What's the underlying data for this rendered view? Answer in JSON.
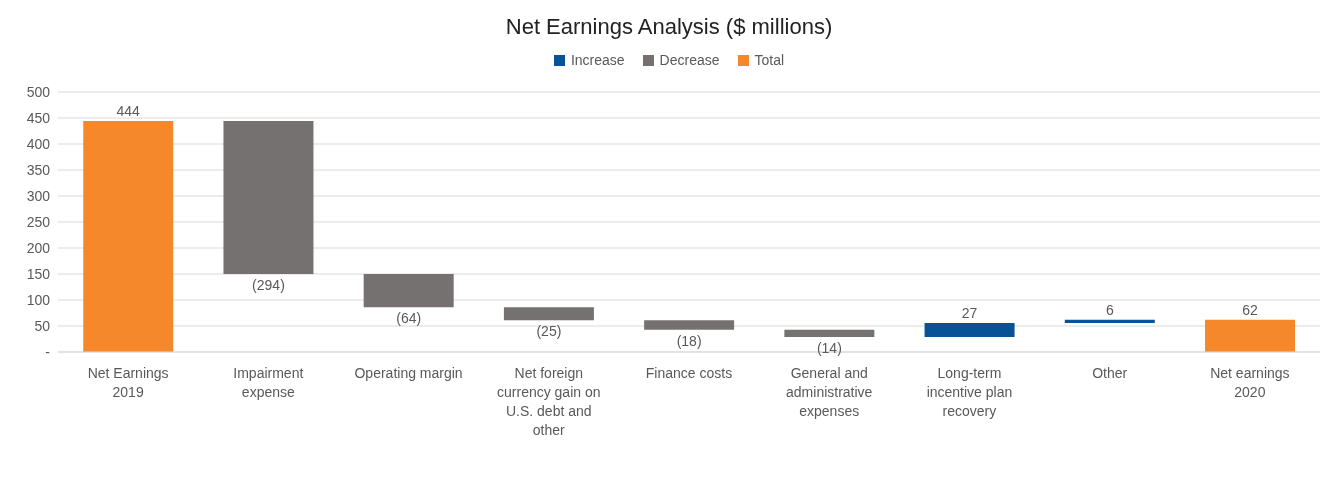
{
  "chart_data": {
    "type": "bar",
    "title": "Net Earnings Analysis ($ millions)",
    "categories": [
      "Net Earnings 2019",
      "Impairment expense",
      "Operating margin",
      "Net foreign currency gain on U.S. debt and other",
      "Finance costs",
      "General and administrative expenses",
      "Long-term incentive plan recovery",
      "Other",
      "Net earnings 2020"
    ],
    "stacked": true,
    "series": [
      {
        "name": "Increase",
        "color": "#0a5296",
        "values": [
          null,
          null,
          null,
          null,
          null,
          null,
          27,
          6,
          null
        ],
        "base": [
          null,
          null,
          null,
          null,
          null,
          null,
          29,
          56,
          null
        ],
        "value_labels": [
          null,
          null,
          null,
          null,
          null,
          null,
          "27",
          "6",
          null
        ]
      },
      {
        "name": "Decrease",
        "color": "#767171",
        "values": [
          null,
          -294,
          -64,
          -25,
          -18,
          -14,
          null,
          null,
          null
        ],
        "base": [
          null,
          444,
          150,
          86,
          61,
          43,
          null,
          null,
          null
        ],
        "value_labels": [
          null,
          "(294)",
          "(64)",
          "(25)",
          "(18)",
          "(14)",
          null,
          null,
          null
        ]
      },
      {
        "name": "Total",
        "color": "#f5882a",
        "values": [
          444,
          null,
          null,
          null,
          null,
          null,
          null,
          null,
          62
        ],
        "base": [
          0,
          null,
          null,
          null,
          null,
          null,
          null,
          null,
          0
        ],
        "value_labels": [
          "444",
          null,
          null,
          null,
          null,
          null,
          null,
          null,
          "62"
        ]
      }
    ],
    "ylim": [
      0,
      500
    ],
    "yticks": [
      {
        "value": 0,
        "label": "-"
      },
      50,
      100,
      150,
      200,
      250,
      300,
      350,
      400,
      450,
      500
    ],
    "grid": "y",
    "legend": "top"
  }
}
